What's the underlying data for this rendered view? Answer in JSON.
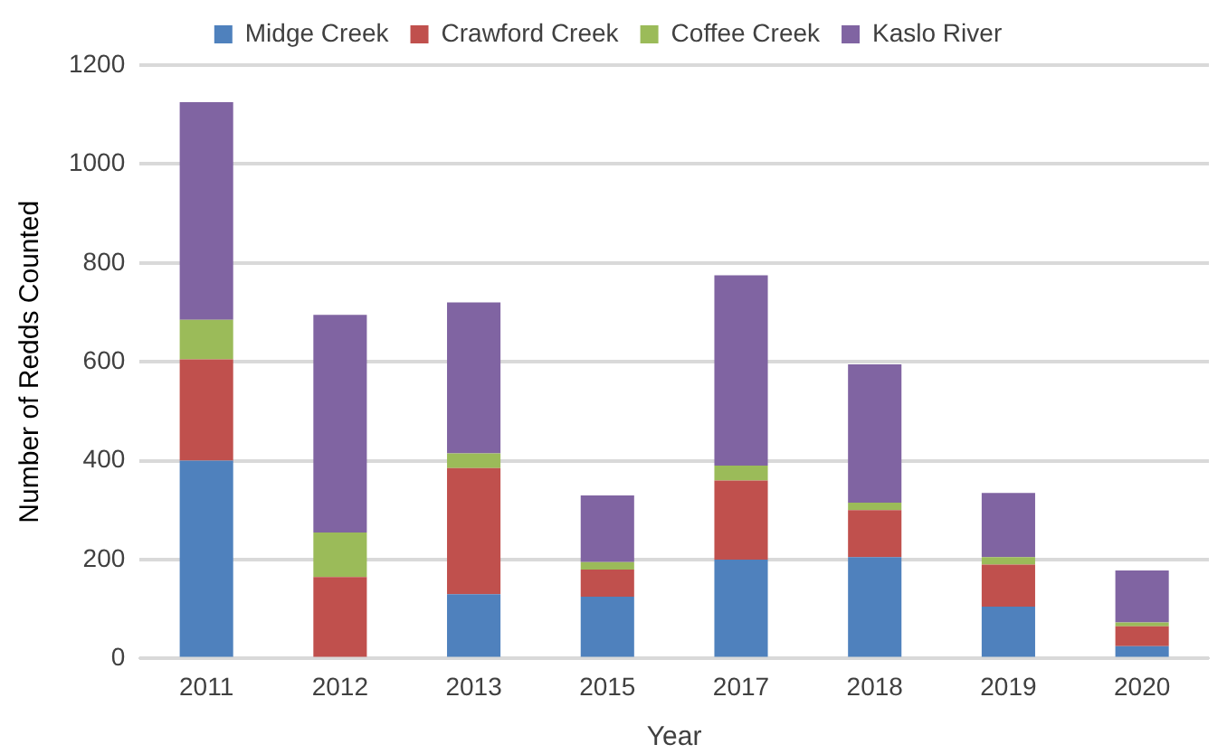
{
  "chart_data": {
    "type": "bar",
    "stacked": true,
    "xlabel": "Year",
    "ylabel": "Number of Redds Counted",
    "categories": [
      "2011",
      "2012",
      "2013",
      "2015",
      "2017",
      "2018",
      "2019",
      "2020"
    ],
    "series": [
      {
        "name": "Midge Creek",
        "color": "#4f81bd",
        "values": [
          400,
          0,
          130,
          125,
          200,
          205,
          105,
          25
        ]
      },
      {
        "name": "Crawford Creek",
        "color": "#c0504d",
        "values": [
          205,
          165,
          255,
          55,
          160,
          95,
          85,
          40
        ]
      },
      {
        "name": "Coffee Creek",
        "color": "#9bbb59",
        "values": [
          80,
          90,
          30,
          15,
          30,
          15,
          15,
          8
        ]
      },
      {
        "name": "Kaslo River",
        "color": "#8064a2",
        "values": [
          440,
          440,
          305,
          135,
          385,
          280,
          130,
          105
        ]
      }
    ],
    "ylim": [
      0,
      1200
    ],
    "yticks": [
      0,
      200,
      400,
      600,
      800,
      1000,
      1200
    ],
    "grid": "y",
    "legend": "top"
  }
}
